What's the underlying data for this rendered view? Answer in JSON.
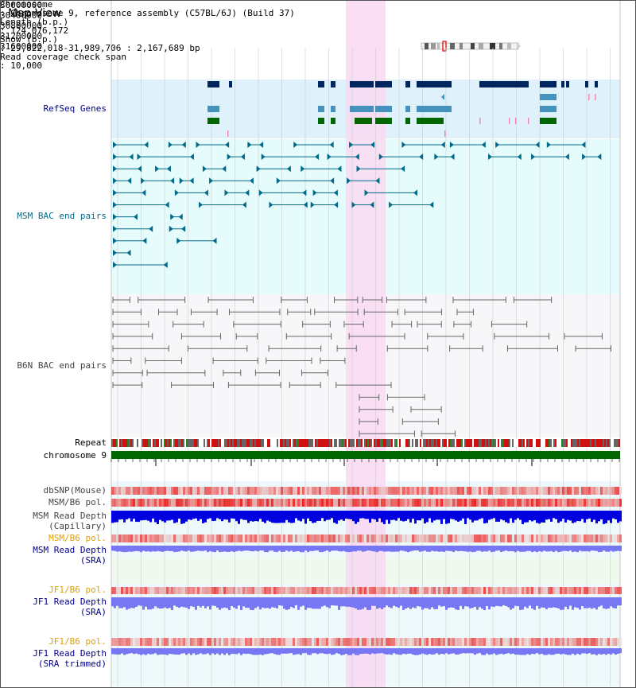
{
  "page": {
    "title": "Map View"
  },
  "header": {
    "chromosome_key": "Chromosome",
    "chromosome_value": ": Chromosome 9, reference assembly (C57BL/6J) (Build 37)",
    "length_key": "Length (b.p.)",
    "length_value": ": 124,076,172",
    "show_key": "Show (b.p.)",
    "show_value": ": 29,822,018-31,989,706 : 2,167,689 bp",
    "coverage_key": "Read coverage check span",
    "coverage_value": ": 10,000"
  },
  "tracks": {
    "refseq": "RefSeq Genes",
    "msm_bac": "MSM BAC end pairs",
    "b6n_bac": "B6N BAC end pairs",
    "repeat": "Repeat",
    "chromosome": "chromosome 9",
    "dbsnp": "dbSNP(Mouse)",
    "msm_pol_1": "MSM/B6 pol.",
    "msm_depth_cap_1": "MSM Read Depth",
    "msm_depth_cap_2": "(Capillary)",
    "msm_pol_2": "MSM/B6 pol.",
    "msm_depth_sra_1": "MSM Read Depth",
    "msm_depth_sra_2": "(SRA)",
    "jf1_pol_1": "JF1/B6 pol.",
    "jf1_depth_sra_1": "JF1 Read Depth",
    "jf1_depth_sra_2": "(SRA)",
    "jf1_pol_2": "JF1/B6 pol.",
    "jf1_depth_trim_1": "JF1 Read Depth",
    "jf1_depth_trim_2": "(SRA trimmed)"
  },
  "axis": {
    "ticks": [
      "30000000",
      "30400000",
      "30800000",
      "31200000",
      "31600000"
    ]
  },
  "colors": {
    "highlight": "#f9d9f2",
    "refseq_bg": "#dff1fb",
    "msm_bg": "#e6fbfb",
    "b6n_bg": "#f7f7fa",
    "lower_bg": "#eef9fb",
    "sra_bg": "#f0f9ee",
    "gene_navy": "#00265f",
    "gene_light": "#4592bd",
    "gene_green": "#006600",
    "msm_line": "#006b8a",
    "b6n_line": "#666666",
    "chromosome_bar": "#006600",
    "depth_blue": "#0000e0",
    "depth_light": "#7777f4"
  }
}
